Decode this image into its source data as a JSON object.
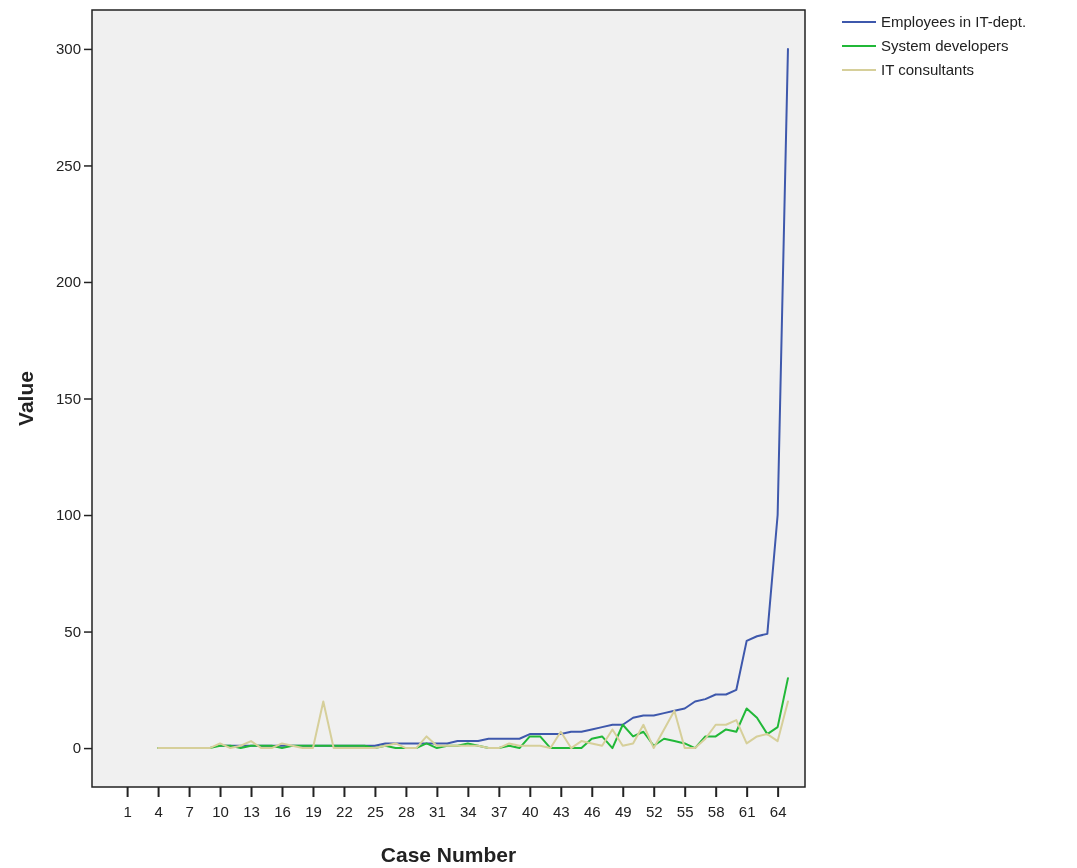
{
  "chart_data": {
    "type": "line",
    "xlabel": "Case Number",
    "ylabel": "Value",
    "categories": [
      "1",
      null,
      null,
      "4",
      null,
      null,
      "7",
      null,
      null,
      "10",
      null,
      null,
      "13",
      null,
      null,
      "16",
      null,
      null,
      "19",
      null,
      null,
      "22",
      null,
      null,
      "25",
      null,
      null,
      "28",
      null,
      null,
      "31",
      null,
      null,
      "34",
      null,
      null,
      "37",
      null,
      null,
      "40",
      null,
      null,
      "43",
      null,
      null,
      "46",
      null,
      null,
      "49",
      null,
      null,
      "52",
      null,
      null,
      "55",
      null,
      null,
      "58",
      null,
      null,
      "61",
      null,
      null,
      "64",
      null
    ],
    "ylim": [
      -16.7,
      316.7
    ],
    "yticks": [
      0,
      50,
      100,
      150,
      200,
      250,
      300
    ],
    "grid": false,
    "legend": "top right",
    "marker": "none",
    "line_style": "solid",
    "series": [
      {
        "name": "Employees in IT-dept.",
        "color": "#3e58ac",
        "values": [
          null,
          null,
          null,
          null,
          null,
          null,
          null,
          null,
          null,
          1,
          1,
          1,
          1,
          1,
          1,
          1,
          1,
          1,
          1,
          1,
          1,
          1,
          1,
          1,
          1,
          2,
          2,
          2,
          2,
          2,
          2,
          2,
          3,
          3,
          3,
          4,
          4,
          4,
          4,
          6,
          6,
          6,
          6,
          7,
          7,
          8,
          9,
          10,
          10,
          13,
          14,
          14,
          15,
          16,
          17,
          20,
          21,
          23,
          23,
          25,
          46,
          48,
          49,
          100,
          300
        ]
      },
      {
        "name": "System developers",
        "color": "#21b838",
        "values": [
          null,
          null,
          null,
          0,
          0,
          0,
          0,
          0,
          0,
          1,
          1,
          0,
          1,
          1,
          1,
          0,
          1,
          1,
          1,
          1,
          1,
          1,
          1,
          1,
          0,
          1,
          0,
          0,
          0,
          2,
          0,
          1,
          1,
          2,
          1,
          0,
          0,
          1,
          0,
          5,
          5,
          0,
          0,
          0,
          0,
          4,
          5,
          0,
          10,
          5,
          7,
          1,
          4,
          3,
          2,
          0,
          5,
          5,
          8,
          7,
          17,
          13,
          6,
          9,
          30
        ]
      },
      {
        "name": "IT consultants",
        "color": "#d6cf9a",
        "values": [
          null,
          null,
          null,
          0,
          0,
          0,
          0,
          0,
          0,
          2,
          0,
          1,
          3,
          0,
          0,
          2,
          1,
          0,
          0,
          20,
          0,
          0,
          0,
          0,
          0,
          1,
          2,
          0,
          0,
          5,
          1,
          1,
          1,
          1,
          1,
          0,
          0,
          2,
          1,
          1,
          1,
          0,
          7,
          0,
          3,
          2,
          1,
          8,
          1,
          2,
          10,
          0,
          8,
          16,
          0,
          0,
          4,
          10,
          10,
          12,
          2,
          5,
          6,
          3,
          20
        ]
      }
    ]
  }
}
